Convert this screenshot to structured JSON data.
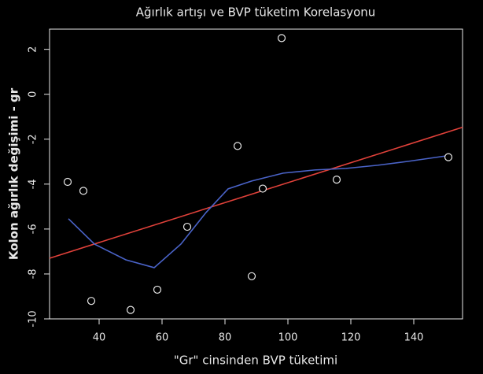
{
  "chart_data": {
    "type": "scatter",
    "title": "Ağırlık artışı ve BVP tüketim Korelasyonu",
    "x_label": "\"Gr\" cinsinden BVP tüketimi",
    "y_label": "Kolon ağırlık değişimi - gr",
    "x": [
      30,
      35,
      37.5,
      50,
      58.5,
      68,
      84,
      88.5,
      92,
      98,
      115.5,
      151
    ],
    "y": [
      -3.9,
      -4.3,
      -9.2,
      -9.6,
      -8.7,
      -5.9,
      -2.3,
      -8.1,
      -4.2,
      2.5,
      -3.8,
      -2.8
    ],
    "point_color": "#000000",
    "lines": [
      {
        "color": "#e0413a",
        "x": [
          24.25,
          155.5
        ],
        "y": [
          -7.3,
          -1.47
        ]
      },
      {
        "color": "#4a63c8",
        "x": [
          30.25,
          38.5,
          48.5,
          57.5,
          66,
          74,
          81,
          88.5,
          98.5,
          108.5,
          118.5,
          128.5,
          138.5,
          150.5
        ],
        "y": [
          -5.54,
          -6.67,
          -7.37,
          -7.72,
          -6.67,
          -5.26,
          -4.21,
          -3.86,
          -3.51,
          -3.37,
          -3.3,
          -3.16,
          -2.98,
          -2.74
        ]
      }
    ],
    "xlim": [
      24.25,
      155.5
    ],
    "ylim": [
      -10,
      2.9
    ],
    "xticks": [
      40,
      60,
      80,
      100,
      120,
      140
    ],
    "yticks": [
      2,
      0,
      -2,
      -4,
      -6,
      -8,
      -10
    ]
  }
}
